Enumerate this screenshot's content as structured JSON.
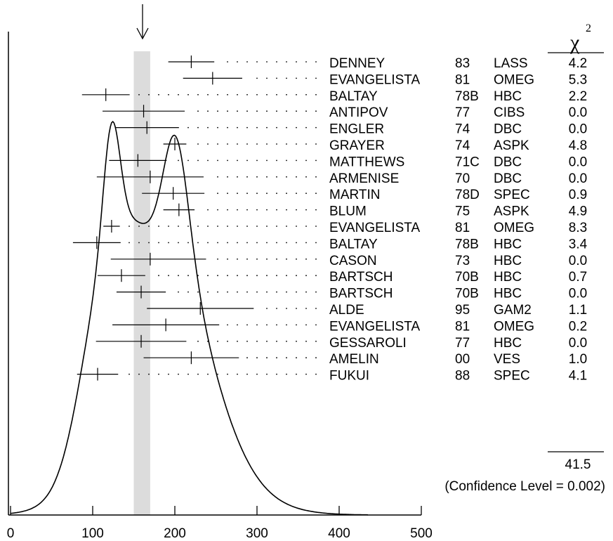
{
  "chart_data": {
    "type": "ideogram",
    "x_axis": {
      "min": 0,
      "max": 500,
      "ticks": [
        0,
        100,
        200,
        300,
        400,
        500
      ]
    },
    "weighted_average_band": [
      150,
      170
    ],
    "chi2_header": {
      "symbol": "χ",
      "superscript": "2"
    },
    "measurements": [
      {
        "name": "DENNEY",
        "year": "83",
        "tech": "LASS",
        "chi2": "4.2",
        "value": 220,
        "low": 192,
        "high": 248
      },
      {
        "name": "EVANGELISTA",
        "year": "81",
        "tech": "OMEG",
        "chi2": "5.3",
        "value": 246,
        "low": 210,
        "high": 282
      },
      {
        "name": "BALTAY",
        "year": "78B",
        "tech": "HBC",
        "chi2": "2.2",
        "value": 116,
        "low": 87,
        "high": 145
      },
      {
        "name": "ANTIPOV",
        "year": "77",
        "tech": "CIBS",
        "chi2": "0.0",
        "value": 162,
        "low": 112,
        "high": 212
      },
      {
        "name": "ENGLER",
        "year": "74",
        "tech": "DBC",
        "chi2": "0.0",
        "value": 166,
        "low": 127,
        "high": 205
      },
      {
        "name": "GRAYER",
        "year": "74",
        "tech": "ASPK",
        "chi2": "4.8",
        "value": 200,
        "low": 186,
        "high": 214
      },
      {
        "name": "MATTHEWS",
        "year": "71C",
        "tech": "DBC",
        "chi2": "0.0",
        "value": 155,
        "low": 120,
        "high": 190
      },
      {
        "name": "ARMENISE",
        "year": "70",
        "tech": "DBC",
        "chi2": "0.0",
        "value": 170,
        "low": 105,
        "high": 235
      },
      {
        "name": "MARTIN",
        "year": "78D",
        "tech": "SPEC",
        "chi2": "0.9",
        "value": 198,
        "low": 160,
        "high": 236
      },
      {
        "name": "BLUM",
        "year": "75",
        "tech": "ASPK",
        "chi2": "4.9",
        "value": 205,
        "low": 186,
        "high": 224
      },
      {
        "name": "EVANGELISTA",
        "year": "81",
        "tech": "OMEG",
        "chi2": "8.3",
        "value": 123,
        "low": 113,
        "high": 133
      },
      {
        "name": "BALTAY",
        "year": "78B",
        "tech": "HBC",
        "chi2": "3.4",
        "value": 105,
        "low": 76,
        "high": 134
      },
      {
        "name": "CASON",
        "year": "73",
        "tech": "HBC",
        "chi2": "0.0",
        "value": 170,
        "low": 122,
        "high": 238
      },
      {
        "name": "BARTSCH",
        "year": "70B",
        "tech": "HBC",
        "chi2": "0.7",
        "value": 135,
        "low": 106,
        "high": 164
      },
      {
        "name": "BARTSCH",
        "year": "70B",
        "tech": "HBC",
        "chi2": "0.0",
        "value": 159,
        "low": 129,
        "high": 189
      },
      {
        "name": "ALDE",
        "year": "95",
        "tech": "GAM2",
        "chi2": "1.1",
        "value": 231,
        "low": 166,
        "high": 296
      },
      {
        "name": "EVANGELISTA",
        "year": "81",
        "tech": "OMEG",
        "chi2": "0.2",
        "value": 189,
        "low": 124,
        "high": 254
      },
      {
        "name": "GESSAROLI",
        "year": "77",
        "tech": "HBC",
        "chi2": "0.0",
        "value": 159,
        "low": 104,
        "high": 214
      },
      {
        "name": "AMELIN",
        "year": "00",
        "tech": "VES",
        "chi2": "1.0",
        "value": 220,
        "low": 162,
        "high": 278
      },
      {
        "name": "FUKUI",
        "year": "88",
        "tech": "SPEC",
        "chi2": "4.1",
        "value": 106,
        "low": 81,
        "high": 131
      }
    ],
    "chi2_total": "41.5",
    "confidence_level_text": "(Confidence Level = 0.002)"
  }
}
